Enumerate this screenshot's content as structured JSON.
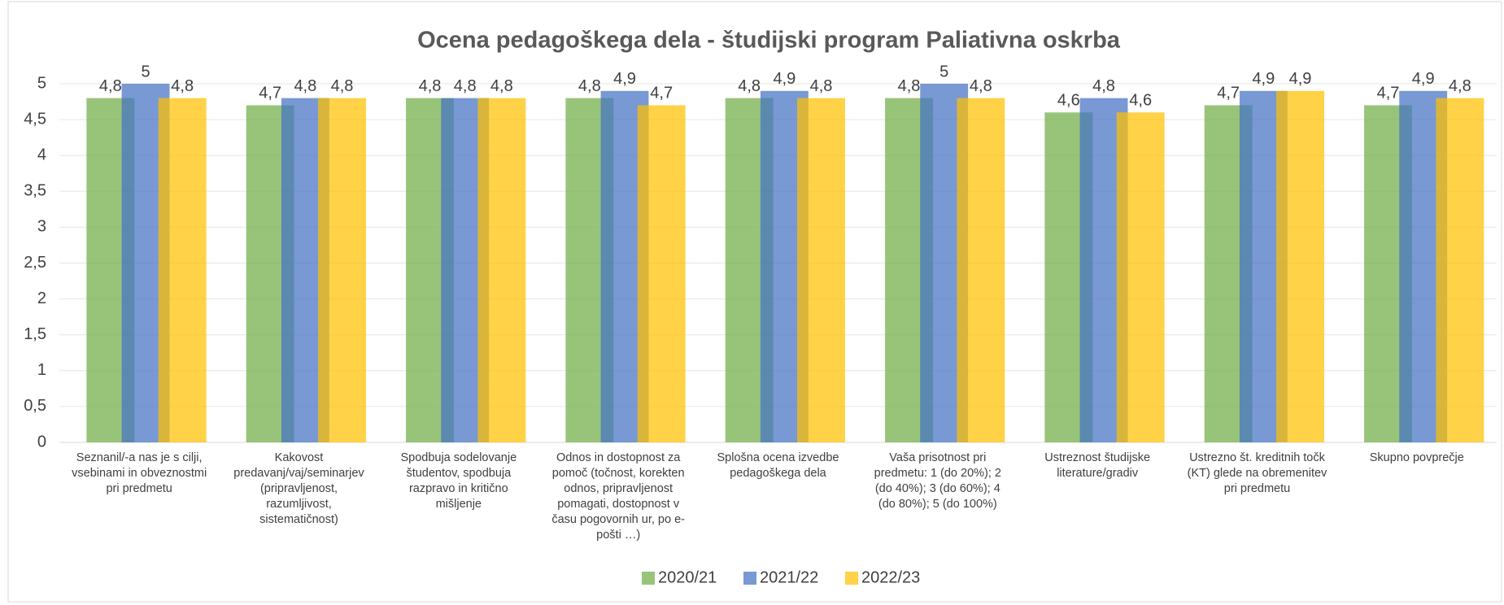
{
  "chart_data": {
    "type": "bar",
    "title": "Ocena pedagoškega dela - študijski program Paliativna oskrba",
    "categories": [
      "Seznanil/-a nas je s cilji, vsebinami in obveznostmi pri predmetu",
      "Kakovost predavanj/vaj/seminarjev (pripravljenost, razumljivost, sistematičnost)",
      "Spodbuja sodelovanje študentov, spodbuja razpravo in kritično mišljenje",
      "Odnos in dostopnost za pomoč (točnost, korekten odnos, pripravljenost pomagati, dostopnost v času pogovornih ur, po e-pošti …)",
      "Splošna ocena izvedbe pedagoškega dela",
      "Vaša prisotnost pri predmetu: 1 (do 20%); 2 (do 40%); 3 (do 60%); 4 (do 80%); 5 (do 100%)",
      "Ustreznost študijske literature/gradiv",
      "Ustrezno št. kreditnih točk (KT) glede na obremenitev pri predmetu",
      "Skupno povprečje"
    ],
    "series": [
      {
        "name": "2020/21",
        "color": "#70ad47",
        "values": [
          4.8,
          4.7,
          4.8,
          4.8,
          4.8,
          4.8,
          4.6,
          4.7,
          4.7
        ],
        "value_labels": [
          "4,8",
          "4,7",
          "4,8",
          "4,8",
          "4,8",
          "4,8",
          "4,6",
          "4,7",
          "4,7"
        ]
      },
      {
        "name": "2021/22",
        "color": "#4472c4",
        "values": [
          5,
          4.8,
          4.8,
          4.9,
          4.9,
          5,
          4.8,
          4.9,
          4.9
        ],
        "value_labels": [
          "5",
          "4,8",
          "4,8",
          "4,9",
          "4,9",
          "5",
          "4,8",
          "4,9",
          "4,9"
        ]
      },
      {
        "name": "2022/23",
        "color": "#ffc000",
        "values": [
          4.8,
          4.8,
          4.8,
          4.7,
          4.8,
          4.8,
          4.6,
          4.9,
          4.8
        ],
        "value_labels": [
          "4,8",
          "4,8",
          "4,8",
          "4,7",
          "4,8",
          "4,8",
          "4,6",
          "4,9",
          "4,8"
        ]
      }
    ],
    "ylim": [
      0,
      5
    ],
    "yticks": [
      0,
      {
        "value": 0.5,
        "label": "0,5"
      },
      1,
      {
        "value": 1.5,
        "label": "1,5"
      },
      2,
      {
        "value": 2.5,
        "label": "2,5"
      },
      3,
      {
        "value": 3.5,
        "label": "3,5"
      },
      4,
      {
        "value": 4.5,
        "label": "4,5"
      },
      5
    ],
    "grid": true,
    "legend": "bottom"
  }
}
